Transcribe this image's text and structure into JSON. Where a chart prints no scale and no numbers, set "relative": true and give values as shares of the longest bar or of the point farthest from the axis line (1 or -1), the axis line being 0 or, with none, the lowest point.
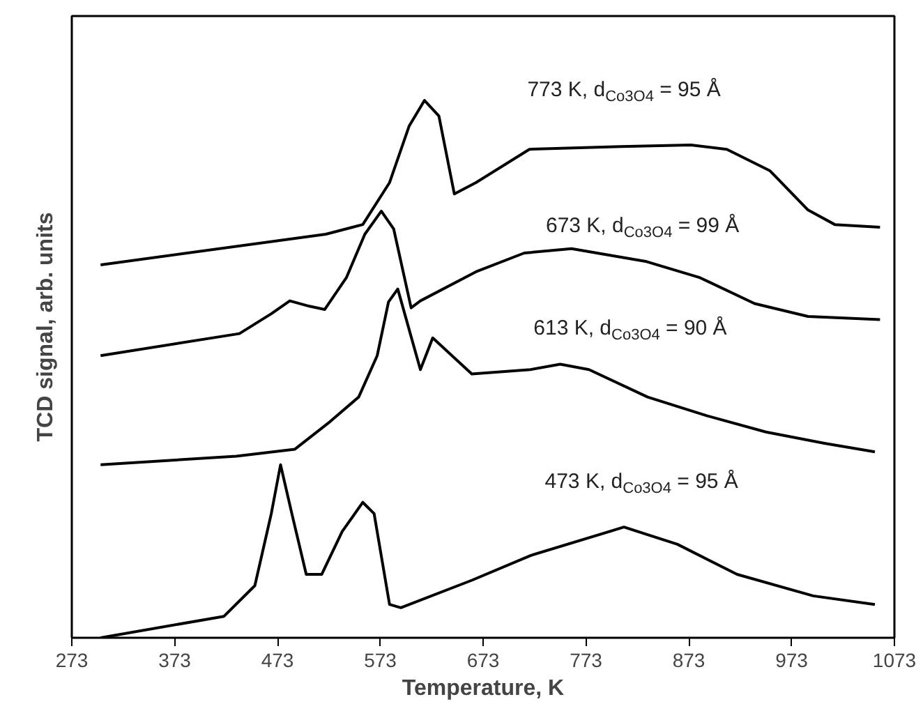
{
  "chart_data": {
    "type": "line",
    "xlabel": "Temperature, K",
    "ylabel": "TCD signal, arb. units",
    "relative": true,
    "xlim": [
      273,
      1073
    ],
    "xticks": [
      273,
      373,
      473,
      573,
      673,
      773,
      873,
      973,
      1073
    ],
    "tick_labels": "x",
    "grid": false,
    "marker": "none",
    "line_style": "solid",
    "series": [
      {
        "name": "773 K, d$_{Co3O4}$ = 95 Å",
        "color": "#000000",
        "x": [
          301,
          520,
          556,
          582,
          601,
          616,
          630,
          645,
          666,
          718,
          807,
          875,
          910,
          952,
          989,
          1015,
          1059
        ],
        "values": [
          0.694,
          0.751,
          0.769,
          0.847,
          0.952,
          1.0,
          0.971,
          0.826,
          0.847,
          0.909,
          0.914,
          0.917,
          0.909,
          0.869,
          0.796,
          0.769,
          0.764
        ]
      },
      {
        "name": "673 K, d$_{Co3O4}$ = 99 Å",
        "color": "#000000",
        "x": [
          301,
          436,
          467,
          485,
          504,
          519,
          540,
          558,
          574,
          586,
          603,
          612,
          666,
          713,
          759,
          832,
          884,
          937,
          989,
          1059
        ],
        "values": [
          0.525,
          0.566,
          0.603,
          0.627,
          0.617,
          0.611,
          0.67,
          0.751,
          0.794,
          0.761,
          0.614,
          0.627,
          0.681,
          0.716,
          0.724,
          0.7,
          0.67,
          0.622,
          0.598,
          0.592
        ]
      },
      {
        "name": "613 K, d$_{Co3O4}$ = 90 Å",
        "color": "#000000",
        "x": [
          301,
          433,
          490,
          524,
          552,
          570,
          581,
          590,
          612,
          624,
          662,
          719,
          748,
          776,
          833,
          891,
          948,
          1005,
          1054
        ],
        "values": [
          0.322,
          0.338,
          0.351,
          0.402,
          0.448,
          0.525,
          0.625,
          0.649,
          0.499,
          0.558,
          0.491,
          0.499,
          0.509,
          0.499,
          0.448,
          0.413,
          0.383,
          0.362,
          0.346
        ]
      },
      {
        "name": "473 K, d$_{Co3O4}$ = 95 Å",
        "color": "#000000",
        "x": [
          301,
          421,
          451,
          467,
          476,
          487,
          501,
          516,
          536,
          556,
          567,
          582,
          593,
          662,
          719,
          810,
          862,
          920,
          994,
          1054
        ],
        "values": [
          0.0,
          0.04,
          0.097,
          0.231,
          0.322,
          0.231,
          0.118,
          0.118,
          0.198,
          0.252,
          0.231,
          0.062,
          0.056,
          0.107,
          0.153,
          0.206,
          0.174,
          0.118,
          0.078,
          0.062
        ]
      }
    ]
  }
}
